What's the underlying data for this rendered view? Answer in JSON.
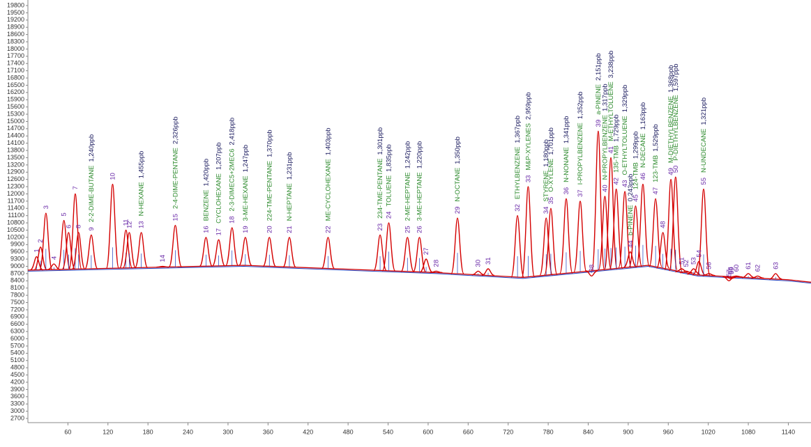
{
  "chart_data": {
    "type": "line",
    "xlim": [
      0,
      1174
    ],
    "xticks": [
      60,
      120,
      180,
      240,
      300,
      360,
      420,
      480,
      540,
      600,
      660,
      720,
      780,
      840,
      900,
      960,
      1020,
      1080,
      1140
    ],
    "ylim": [
      2700,
      19800
    ],
    "yticks": [
      2700,
      3000,
      3300,
      3600,
      3900,
      4200,
      4500,
      4800,
      5100,
      5400,
      5700,
      6000,
      6300,
      6600,
      6900,
      7200,
      7500,
      7800,
      8100,
      8400,
      8700,
      9000,
      9300,
      9600,
      9900,
      10200,
      10500,
      10800,
      11100,
      11400,
      11700,
      12000,
      12300,
      12600,
      12900,
      13200,
      13500,
      13800,
      14100,
      14400,
      14700,
      15000,
      15300,
      15600,
      15900,
      16200,
      16500,
      16800,
      17100,
      17400,
      17700,
      18000,
      18300,
      18600,
      18900,
      19200,
      19500,
      19800
    ],
    "label_colors": {
      "number": "#6a2aa8",
      "name": "#2e8b2e",
      "amount": "#1a1a5e"
    },
    "series": [
      {
        "color": "#d40000",
        "x": [
          13,
          19,
          27,
          39,
          54,
          61,
          71,
          76,
          95,
          127,
          147,
          152,
          170,
          202,
          221,
          267,
          286,
          306,
          326,
          362,
          392,
          450,
          528,
          541,
          569,
          587,
          597,
          612,
          644,
          675,
          690,
          734,
          750,
          777,
          784,
          807,
          828,
          845,
          855,
          865,
          874,
          882,
          895,
          903,
          911,
          922,
          941,
          952,
          964,
          971,
          980,
          987,
          998,
          1006,
          1013,
          1021,
          1051,
          1053,
          1055,
          1062,
          1080,
          1094,
          1121
        ],
        "values": [
          9400,
          9800,
          11200,
          9100,
          10900,
          10400,
          12000,
          10400,
          10300,
          12400,
          10500,
          10400,
          10400,
          9000,
          10700,
          10200,
          10100,
          10600,
          10200,
          10200,
          10200,
          10200,
          10300,
          10800,
          10200,
          10200,
          9300,
          8800,
          11000,
          8800,
          8900,
          11100,
          12300,
          11000,
          11400,
          11800,
          11700,
          8600,
          14600,
          11900,
          13500,
          12200,
          12100,
          9600,
          11500,
          12400,
          11800,
          10400,
          12600,
          12700,
          8900,
          8800,
          8900,
          9200,
          12200,
          8700,
          8400,
          8500,
          8500,
          8600,
          8700,
          8600,
          8700
        ]
      },
      {
        "color": "#1f3fbf",
        "x": [
          0,
          324,
          612,
          742,
          930,
          1004,
          1140,
          1174
        ],
        "values": [
          8800,
          9000,
          8700,
          8500,
          9000,
          8600,
          8400,
          8300
        ]
      }
    ],
    "peak_labels": [
      {
        "label": "1"
      },
      {
        "label": "2"
      },
      {
        "label": "3"
      },
      {
        "label": "4"
      },
      {
        "label": "5"
      },
      {
        "label": "6"
      },
      {
        "label": "7"
      },
      {
        "label": "8"
      },
      {
        "label": "9",
        "name": "2-2-DIME-BUTANE",
        "amount": "1,240ppb"
      },
      {
        "label": "10"
      },
      {
        "label": "11"
      },
      {
        "label": "12"
      },
      {
        "label": "13",
        "name": "N-HEXANE",
        "amount": "1,455ppb"
      },
      {
        "label": "14"
      },
      {
        "label": "15",
        "name": "2-4-DIME-PENTANE",
        "amount": "2,326ppb"
      },
      {
        "label": "16",
        "name": "BENZENE",
        "amount": "1,420ppb"
      },
      {
        "label": "17",
        "name": "CYCLOHEXANE",
        "amount": "1,207ppb"
      },
      {
        "label": "18",
        "name": "2-3-DIMEC5+2MEC6",
        "amount": "2,418ppb"
      },
      {
        "label": "19",
        "name": "3-ME-HEXANE",
        "amount": "1,247ppb"
      },
      {
        "label": "20",
        "name": "224-TME-PENTANE",
        "amount": "1,370ppb"
      },
      {
        "label": "21",
        "name": "N-HEPTANE",
        "amount": "1,231ppb"
      },
      {
        "label": "22",
        "name": "ME-CYCLOHEXANE",
        "amount": "1,403ppb"
      },
      {
        "label": "23",
        "name": "234-TME-PENTANE",
        "amount": "1,301ppb"
      },
      {
        "label": "24",
        "name": "TOLUENE",
        "amount": "1,835ppb"
      },
      {
        "label": "25",
        "name": "2-ME-HEPTANE",
        "amount": "1,242ppb"
      },
      {
        "label": "26",
        "name": "3-ME-HEPTANE",
        "amount": "1,220ppb"
      },
      {
        "label": "27"
      },
      {
        "label": "28"
      },
      {
        "label": "29",
        "name": "N-OCTANE",
        "amount": "1,350ppb"
      },
      {
        "label": "30"
      },
      {
        "label": "31"
      },
      {
        "label": "32",
        "name": "ETHYLBENZENE",
        "amount": "1,367ppb"
      },
      {
        "label": "33",
        "name": "M&P-XYLENES",
        "amount": "2,959ppb"
      },
      {
        "label": "34",
        "name": "STYRENE",
        "amount": "1,180ppb"
      },
      {
        "label": "35",
        "name": "O-XYLENE",
        "amount": "1,701ppb"
      },
      {
        "label": "36",
        "name": "N-NONANE",
        "amount": "1,341ppb"
      },
      {
        "label": "37",
        "name": "I-PROPYLBENZENE",
        "amount": "1,352ppb"
      },
      {
        "label": "38"
      },
      {
        "label": "39",
        "name": "a-PINENE",
        "amount": "2,151ppb"
      },
      {
        "label": "40",
        "name": "N-PROPYLBENZENE",
        "amount": "1,317ppb"
      },
      {
        "label": "41",
        "name": "M-ETHYLTOLUENE",
        "amount": "3,238ppb"
      },
      {
        "label": "42",
        "name": "135-TMB",
        "amount": "1,729ppb"
      },
      {
        "label": "43",
        "name": "O-ETHYLTOLUENE",
        "amount": "1,329ppb"
      },
      {
        "label": "44",
        "name": "b-PINENE",
        "amount": "0,243ppb"
      },
      {
        "label": "45",
        "name": "124-TMB",
        "amount": "1,299ppb"
      },
      {
        "label": "46",
        "name": "N-DECANE",
        "amount": "1,163ppb"
      },
      {
        "label": "47",
        "name": "123-TMB",
        "amount": "1,529ppb"
      },
      {
        "label": "48"
      },
      {
        "label": "49",
        "name": "M-DIETHYLBENZENE",
        "amount": "1,368ppb"
      },
      {
        "label": "50",
        "name": "P-DIETHYLBENZENE",
        "amount": "1,597ppb"
      },
      {
        "label": "51"
      },
      {
        "label": "52"
      },
      {
        "label": "53"
      },
      {
        "label": "54"
      },
      {
        "label": "55",
        "name": "N-UNDECANE",
        "amount": "1,321ppb"
      },
      {
        "label": "56"
      },
      {
        "label": "57"
      },
      {
        "label": "58"
      },
      {
        "label": "59"
      },
      {
        "label": "60"
      },
      {
        "label": "61"
      },
      {
        "label": "62"
      },
      {
        "label": "63"
      }
    ]
  }
}
